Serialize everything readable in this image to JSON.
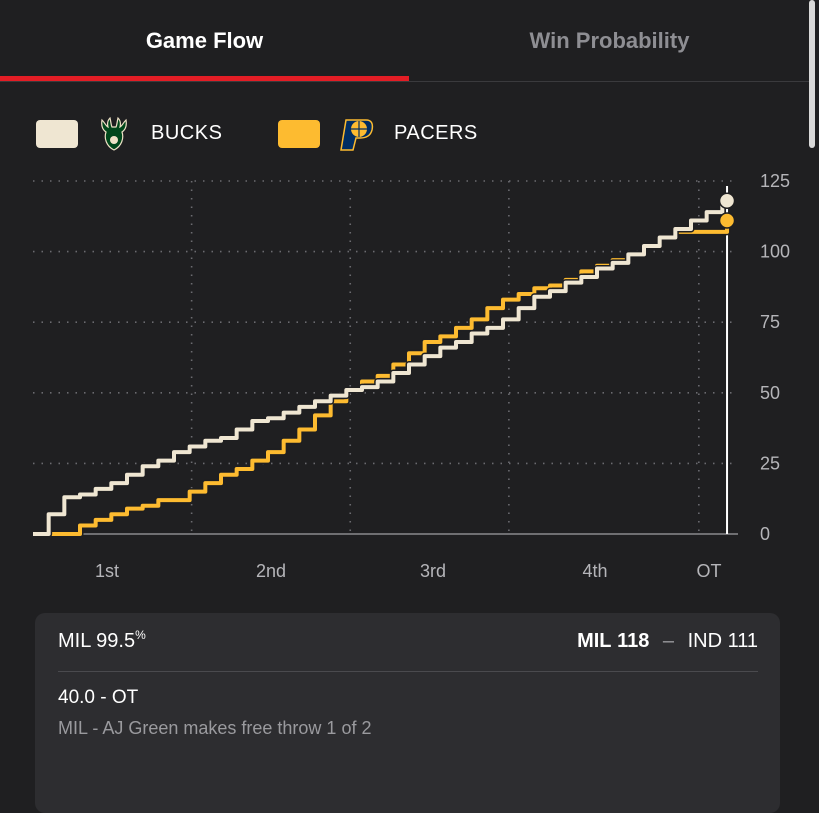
{
  "tabs": [
    {
      "label": "Game Flow",
      "active": true
    },
    {
      "label": "Win Probability",
      "active": false
    }
  ],
  "legend": [
    {
      "team": "BUCKS",
      "color": "#efe6d2",
      "logo": "bucks-logo-icon"
    },
    {
      "team": "PACERS",
      "color": "#fdbb30",
      "logo": "pacers-logo-icon"
    }
  ],
  "colors": {
    "accent": "#e31d25",
    "bucks": "#efe6d2",
    "pacers": "#fdbb30",
    "background": "#1f1f21",
    "card": "#2d2d30"
  },
  "chart_data": {
    "type": "line",
    "x_periods": [
      "1st",
      "2nd",
      "3rd",
      "4th",
      "OT"
    ],
    "ylim": [
      0,
      125
    ],
    "y_ticks": [
      0,
      25,
      50,
      75,
      100,
      125
    ],
    "grid": true,
    "series": [
      {
        "name": "BUCKS",
        "color": "#efe6d2",
        "points": [
          [
            0,
            0
          ],
          [
            1,
            7
          ],
          [
            2,
            13
          ],
          [
            3,
            14
          ],
          [
            4,
            16
          ],
          [
            5,
            18
          ],
          [
            6,
            21
          ],
          [
            7,
            24
          ],
          [
            8,
            26
          ],
          [
            9,
            29
          ],
          [
            10,
            31
          ],
          [
            11,
            33
          ],
          [
            12,
            34
          ],
          [
            13,
            37
          ],
          [
            14,
            40
          ],
          [
            15,
            41
          ],
          [
            16,
            43
          ],
          [
            17,
            45
          ],
          [
            18,
            47
          ],
          [
            19,
            49
          ],
          [
            20,
            51
          ],
          [
            21,
            52
          ],
          [
            22,
            54
          ],
          [
            23,
            57
          ],
          [
            24,
            60
          ],
          [
            25,
            63
          ],
          [
            26,
            66
          ],
          [
            27,
            68
          ],
          [
            28,
            71
          ],
          [
            29,
            73
          ],
          [
            30,
            76
          ],
          [
            31,
            80
          ],
          [
            32,
            84
          ],
          [
            33,
            86
          ],
          [
            34,
            89
          ],
          [
            35,
            91
          ],
          [
            36,
            94
          ],
          [
            37,
            96
          ],
          [
            38,
            99
          ],
          [
            39,
            102
          ],
          [
            40,
            105
          ],
          [
            41,
            108
          ],
          [
            42,
            111
          ],
          [
            43,
            114
          ],
          [
            44,
            117
          ],
          [
            44.3,
            118
          ]
        ]
      },
      {
        "name": "PACERS",
        "color": "#fdbb30",
        "points": [
          [
            0,
            0
          ],
          [
            1,
            0
          ],
          [
            2,
            0
          ],
          [
            3,
            3
          ],
          [
            4,
            5
          ],
          [
            5,
            7
          ],
          [
            6,
            9
          ],
          [
            7,
            10
          ],
          [
            8,
            12
          ],
          [
            9,
            12
          ],
          [
            10,
            15
          ],
          [
            11,
            18
          ],
          [
            12,
            21
          ],
          [
            13,
            23
          ],
          [
            14,
            26
          ],
          [
            15,
            29
          ],
          [
            16,
            33
          ],
          [
            17,
            37
          ],
          [
            18,
            42
          ],
          [
            19,
            47
          ],
          [
            20,
            51
          ],
          [
            21,
            54
          ],
          [
            22,
            56
          ],
          [
            23,
            60
          ],
          [
            24,
            64
          ],
          [
            25,
            68
          ],
          [
            26,
            70
          ],
          [
            27,
            73
          ],
          [
            28,
            76
          ],
          [
            29,
            80
          ],
          [
            30,
            83
          ],
          [
            31,
            85
          ],
          [
            32,
            87
          ],
          [
            33,
            88
          ],
          [
            34,
            90
          ],
          [
            35,
            93
          ],
          [
            36,
            95
          ],
          [
            37,
            97
          ],
          [
            38,
            99
          ],
          [
            39,
            102
          ],
          [
            40,
            105
          ],
          [
            41,
            107
          ],
          [
            42,
            107
          ],
          [
            43,
            107
          ],
          [
            44,
            107
          ],
          [
            44.3,
            111
          ]
        ]
      }
    ],
    "current_marker_x": 44.3,
    "end_markers": [
      {
        "series": "BUCKS",
        "value": 118
      },
      {
        "series": "PACERS",
        "value": 111
      }
    ]
  },
  "card": {
    "prob_team": "MIL",
    "prob_value": "99.5",
    "prob_unit": "%",
    "team1": "MIL",
    "score1": "118",
    "separator": "–",
    "team2": "IND",
    "score2": "111",
    "clock": "40.0 - OT",
    "play": "MIL - AJ Green makes free throw 1 of 2"
  }
}
